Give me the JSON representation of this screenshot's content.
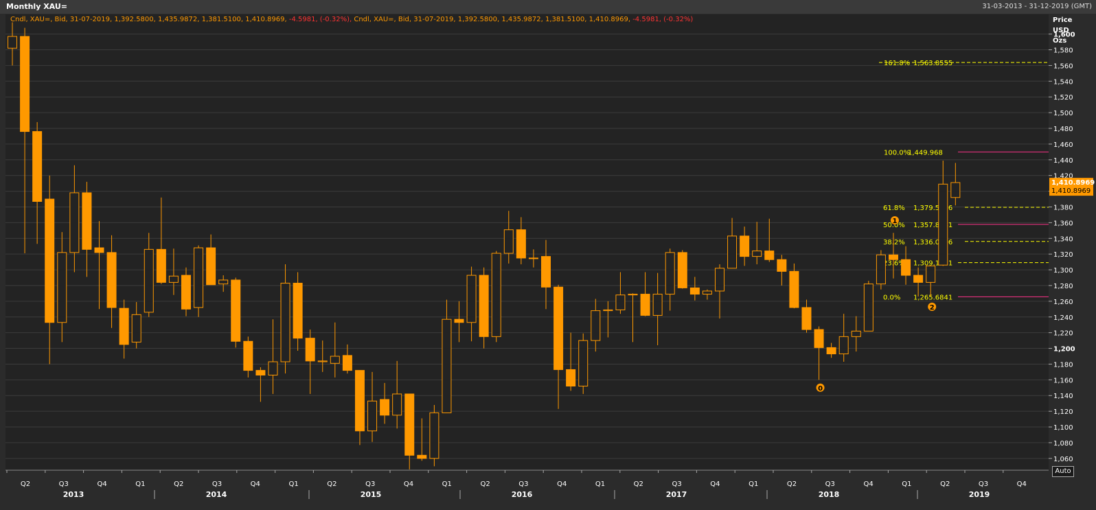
{
  "window": {
    "title": "Monthly XAU=",
    "date_range": "31-03-2013 - 31-12-2019 (GMT)"
  },
  "legend": {
    "part1": "Cndl, XAU=, Bid, 31-07-2019, 1,392.5800, 1,435.9872, 1,381.5100, 1,410.8969,",
    "change1": "-4.5981, (-0.32%),",
    "part2": "Cndl, XAU=, Bid, 31-07-2019, 1,392.5800, 1,435.9872, 1,381.5100, 1,410.8969,",
    "change2": "-4.5981, (-0.32%)"
  },
  "axis_header": {
    "line1": "Price",
    "line2": "USD",
    "line3": "Ozs"
  },
  "auto_label": "Auto",
  "colors": {
    "background": "#232323",
    "candle": "#ff9900",
    "fib_yellow": "#ffff00",
    "fib_magenta": "#ff3388",
    "text": "#ffffff"
  },
  "chart_data": {
    "type": "candlestick",
    "title": "Monthly XAU=",
    "ylabel": "Price USD Ozs",
    "ylim": [
      1045,
      1625
    ],
    "yticks": [
      1060,
      1080,
      1100,
      1120,
      1140,
      1160,
      1180,
      1200,
      1220,
      1240,
      1260,
      1280,
      1300,
      1320,
      1340,
      1360,
      1380,
      1400,
      1420,
      1440,
      1460,
      1480,
      1500,
      1520,
      1540,
      1560,
      1580,
      1600
    ],
    "ytick_labels": [
      "1,060",
      "1,080",
      "1,100",
      "1,120",
      "1,140",
      "1,160",
      "1,180",
      "1,200",
      "1,220",
      "1,240",
      "1,260",
      "1,280",
      "1,300",
      "1,320",
      "1,340",
      "1,360",
      "1,380",
      "1,400",
      "1,420",
      "1,440",
      "1,460",
      "1,480",
      "1,500",
      "1,520",
      "1,540",
      "1,560",
      "1,580",
      "1,600"
    ],
    "bold_yticks": [
      1200,
      1600
    ],
    "last_price_label": "1,410.8969",
    "last_price_value": 1410.8969,
    "quarter_labels": [
      "Q2",
      "Q3",
      "Q4",
      "Q1",
      "Q2",
      "Q3",
      "Q4",
      "Q1",
      "Q2",
      "Q3",
      "Q4",
      "Q1",
      "Q2",
      "Q3",
      "Q4",
      "Q1",
      "Q2",
      "Q3",
      "Q4",
      "Q1",
      "Q2",
      "Q3",
      "Q4",
      "Q1",
      "Q2",
      "Q3",
      "Q4"
    ],
    "year_labels": [
      "2013",
      "2014",
      "2015",
      "2016",
      "2017",
      "2018",
      "2019"
    ],
    "series": [
      {
        "columns": [
          "open",
          "high",
          "low",
          "close"
        ],
        "candles": [
          [
            1582,
            1615,
            1560,
            1597
          ],
          [
            1597,
            1608,
            1321,
            1476
          ],
          [
            1476,
            1488,
            1333,
            1387
          ],
          [
            1390,
            1420,
            1180,
            1233
          ],
          [
            1233,
            1348,
            1208,
            1322
          ],
          [
            1322,
            1433,
            1297,
            1398
          ],
          [
            1398,
            1412,
            1291,
            1326
          ],
          [
            1328,
            1362,
            1250,
            1322
          ],
          [
            1322,
            1344,
            1226,
            1252
          ],
          [
            1251,
            1262,
            1187,
            1205
          ],
          [
            1208,
            1259,
            1200,
            1243
          ],
          [
            1246,
            1347,
            1240,
            1326
          ],
          [
            1326,
            1392,
            1282,
            1284
          ],
          [
            1284,
            1327,
            1268,
            1292
          ],
          [
            1293,
            1303,
            1241,
            1250
          ],
          [
            1252,
            1331,
            1240,
            1328
          ],
          [
            1328,
            1345,
            1282,
            1281
          ],
          [
            1282,
            1293,
            1272,
            1287
          ],
          [
            1287,
            1290,
            1201,
            1209
          ],
          [
            1209,
            1215,
            1163,
            1172
          ],
          [
            1172,
            1176,
            1132,
            1166
          ],
          [
            1166,
            1237,
            1142,
            1183
          ],
          [
            1183,
            1307,
            1168,
            1283
          ],
          [
            1283,
            1297,
            1197,
            1213
          ],
          [
            1213,
            1224,
            1142,
            1184
          ],
          [
            1183,
            1210,
            1170,
            1184
          ],
          [
            1181,
            1233,
            1163,
            1190
          ],
          [
            1191,
            1205,
            1168,
            1172
          ],
          [
            1172,
            1172,
            1077,
            1095
          ],
          [
            1095,
            1170,
            1081,
            1133
          ],
          [
            1135,
            1156,
            1104,
            1115
          ],
          [
            1115,
            1184,
            1098,
            1142
          ],
          [
            1142,
            1142,
            1046,
            1064
          ],
          [
            1064,
            1111,
            1057,
            1060
          ],
          [
            1060,
            1128,
            1050,
            1118
          ],
          [
            1118,
            1262,
            1118,
            1237
          ],
          [
            1237,
            1260,
            1208,
            1233
          ],
          [
            1233,
            1304,
            1209,
            1293
          ],
          [
            1293,
            1303,
            1200,
            1215
          ],
          [
            1215,
            1324,
            1208,
            1321
          ],
          [
            1321,
            1375,
            1308,
            1351
          ],
          [
            1351,
            1367,
            1307,
            1315
          ],
          [
            1315,
            1326,
            1303,
            1315
          ],
          [
            1317,
            1338,
            1250,
            1278
          ],
          [
            1278,
            1281,
            1123,
            1173
          ],
          [
            1173,
            1220,
            1146,
            1152
          ],
          [
            1152,
            1219,
            1142,
            1210
          ],
          [
            1210,
            1263,
            1196,
            1248
          ],
          [
            1248,
            1260,
            1214,
            1249
          ],
          [
            1249,
            1297,
            1244,
            1268
          ],
          [
            1268,
            1270,
            1208,
            1269
          ],
          [
            1269,
            1297,
            1241,
            1242
          ],
          [
            1242,
            1296,
            1204,
            1269
          ],
          [
            1269,
            1327,
            1248,
            1322
          ],
          [
            1322,
            1325,
            1276,
            1277
          ],
          [
            1277,
            1291,
            1261,
            1269
          ],
          [
            1269,
            1275,
            1262,
            1273
          ],
          [
            1273,
            1307,
            1238,
            1302
          ],
          [
            1302,
            1366,
            1302,
            1343
          ],
          [
            1343,
            1355,
            1305,
            1317
          ],
          [
            1317,
            1361,
            1307,
            1324
          ],
          [
            1324,
            1365,
            1310,
            1313
          ],
          [
            1313,
            1319,
            1280,
            1298
          ],
          [
            1298,
            1308,
            1251,
            1252
          ],
          [
            1252,
            1262,
            1220,
            1224
          ],
          [
            1224,
            1228,
            1160,
            1201
          ],
          [
            1201,
            1207,
            1188,
            1193
          ],
          [
            1193,
            1244,
            1183,
            1215
          ],
          [
            1215,
            1241,
            1196,
            1222
          ],
          [
            1222,
            1286,
            1222,
            1282
          ],
          [
            1282,
            1325,
            1275,
            1319
          ],
          [
            1319,
            1347,
            1289,
            1313
          ],
          [
            1313,
            1330,
            1281,
            1293
          ],
          [
            1293,
            1303,
            1266,
            1284
          ],
          [
            1284,
            1304,
            1266,
            1305
          ],
          [
            1306,
            1439,
            1305,
            1409
          ],
          [
            1392,
            1436,
            1382,
            1411
          ]
        ]
      }
    ],
    "fibonacci": [
      {
        "label": "161.8%",
        "value_label": "1,563.8555",
        "value": 1563.8555
      },
      {
        "label": "100.0%",
        "value_label": "1,449.968",
        "value": 1449.968
      },
      {
        "label": "61.8%",
        "value_label": "1,379.5716",
        "value": 1379.5716
      },
      {
        "label": "50.0%",
        "value_label": "1,357.8261",
        "value": 1357.8261
      },
      {
        "label": "38.2%",
        "value_label": "1,336.0806",
        "value": 1336.0806
      },
      {
        "label": "23.6%",
        "value_label": "1,309.1751",
        "value": 1309.1751
      },
      {
        "label": "0.0%",
        "value_label": "1,265.6841",
        "value": 1265.6841
      }
    ],
    "wave_markers": [
      {
        "label": "0",
        "price": 1150
      },
      {
        "label": "1",
        "price": 1363
      },
      {
        "label": "2",
        "price": 1253
      }
    ]
  }
}
